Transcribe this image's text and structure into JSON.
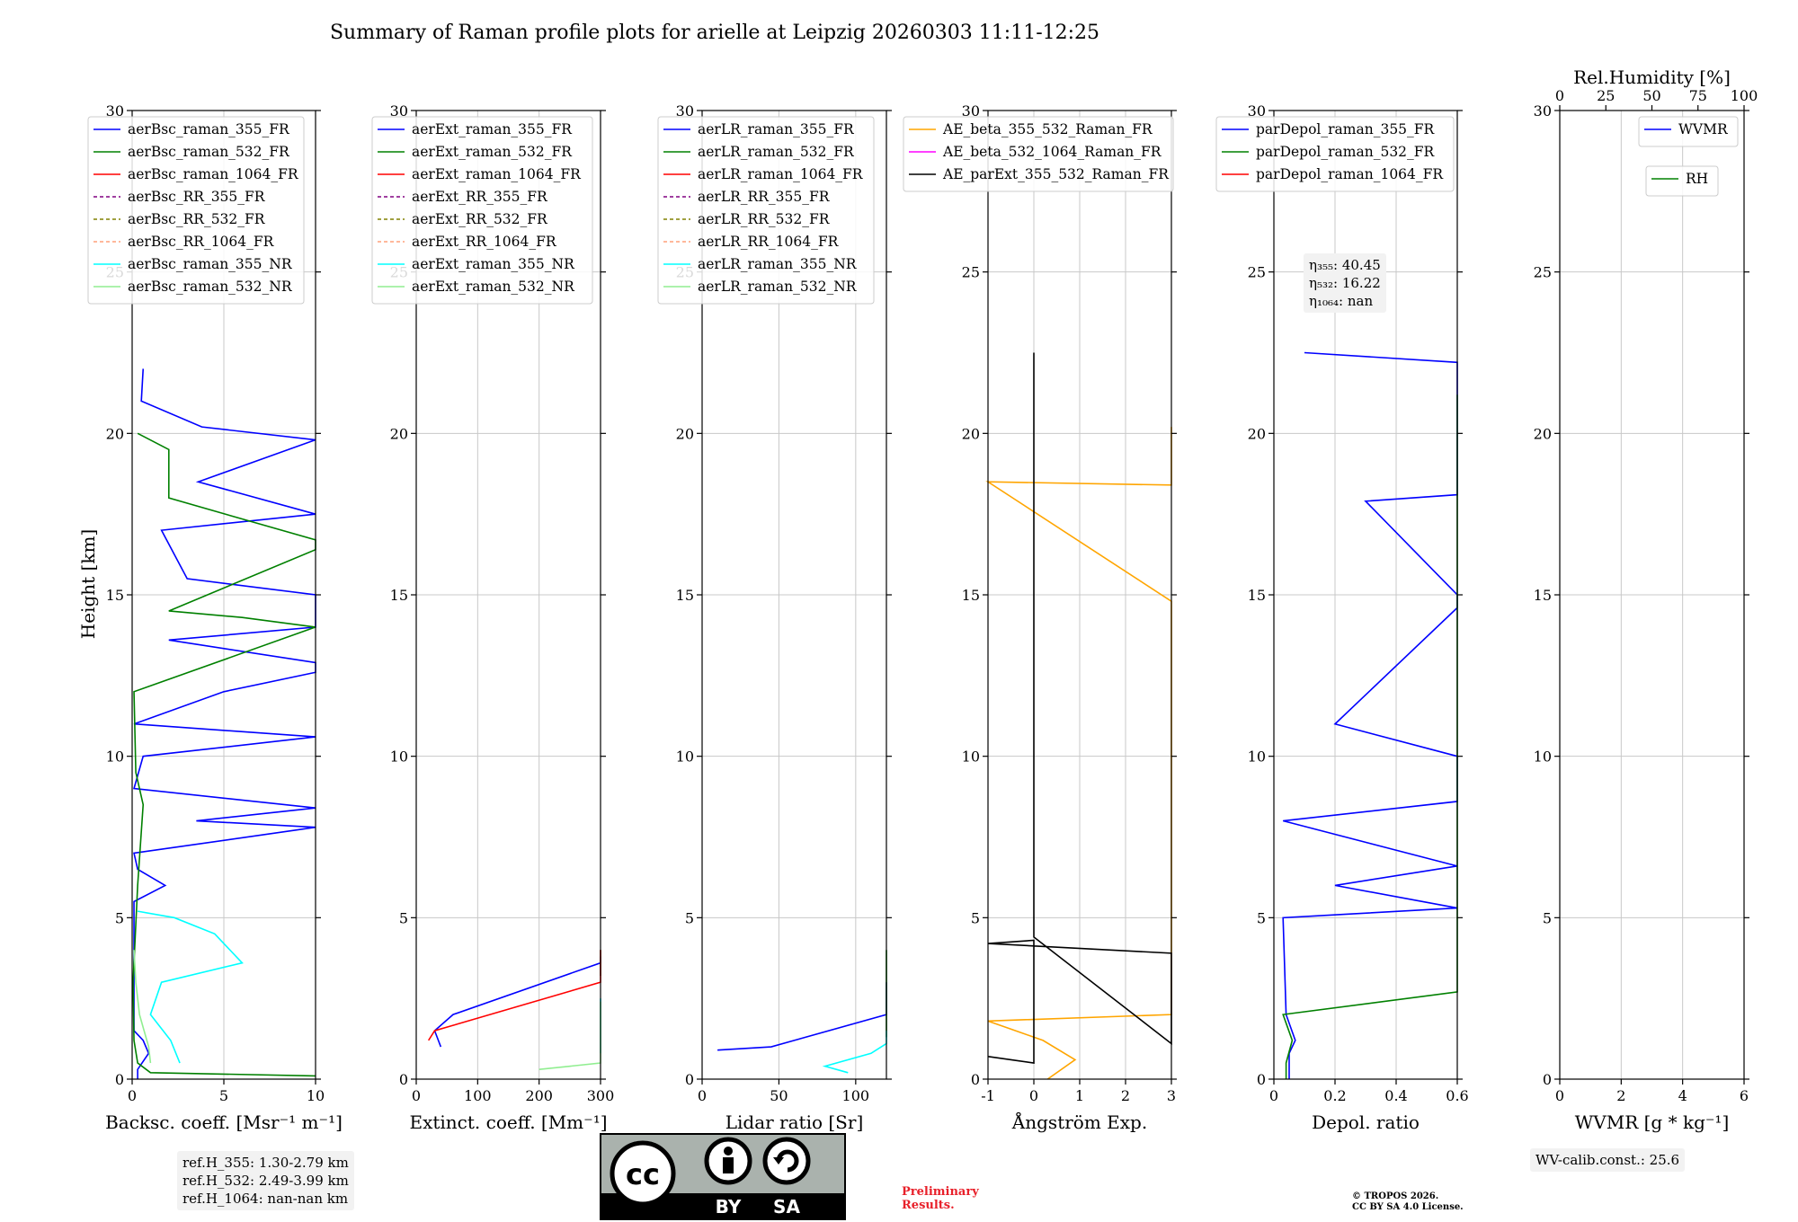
{
  "title": "Summary of Raman profile plots for arielle at Leipzig 20260303 11:11-12:25",
  "shared_y": {
    "label": "Height [km]",
    "ylim": [
      0,
      30
    ],
    "ticks": [
      0,
      5,
      10,
      15,
      20,
      25,
      30
    ]
  },
  "chart_data": [
    {
      "id": "backscatter",
      "type": "line",
      "xlabel": "Backsc. coeff. [Msr⁻¹ m⁻¹]",
      "xlim": [
        0,
        10
      ],
      "xticks": [
        0,
        5,
        10
      ],
      "legend": [
        "aerBsc_raman_355_FR",
        "aerBsc_raman_532_FR",
        "aerBsc_raman_1064_FR",
        "aerBsc_RR_355_FR",
        "aerBsc_RR_532_FR",
        "aerBsc_RR_1064_FR",
        "aerBsc_raman_355_NR",
        "aerBsc_raman_532_NR"
      ],
      "series": [
        {
          "name": "aerBsc_raman_355_FR",
          "color": "#0000ff",
          "points": [
            [
              0.3,
              0
            ],
            [
              0.3,
              0.3
            ],
            [
              0.9,
              0.8
            ],
            [
              0.6,
              1.2
            ],
            [
              0.1,
              1.5
            ],
            [
              0.1,
              5.5
            ],
            [
              1.8,
              6.0
            ],
            [
              0.3,
              6.5
            ],
            [
              0.1,
              7
            ],
            [
              10,
              7.8
            ],
            [
              3.5,
              8.0
            ],
            [
              10,
              8.4
            ],
            [
              0.1,
              9
            ],
            [
              0.6,
              10.0
            ],
            [
              10,
              10.6
            ],
            [
              0.1,
              11
            ],
            [
              5,
              12.0
            ],
            [
              10,
              12.6
            ],
            [
              10,
              12.9
            ],
            [
              2,
              13.6
            ],
            [
              10,
              14.0
            ],
            [
              10,
              14.7
            ],
            [
              10,
              15.0
            ],
            [
              3,
              15.5
            ],
            [
              1.6,
              17
            ],
            [
              10,
              17.5
            ],
            [
              3.6,
              18.5
            ],
            [
              10,
              19.8
            ],
            [
              3.8,
              20.2
            ],
            [
              0.5,
              21
            ],
            [
              0.6,
              22
            ]
          ]
        },
        {
          "name": "aerBsc_raman_532_FR",
          "color": "#008000",
          "points": [
            [
              10,
              0.1
            ],
            [
              1,
              0.2
            ],
            [
              0.3,
              0.5
            ],
            [
              0.1,
              1.2
            ],
            [
              0.05,
              3
            ],
            [
              0.3,
              6
            ],
            [
              0.6,
              8.5
            ],
            [
              0.2,
              9.5
            ],
            [
              0.1,
              12
            ],
            [
              10,
              14.0
            ],
            [
              6,
              14.3
            ],
            [
              2,
              14.5
            ],
            [
              10,
              16.4
            ],
            [
              10,
              16.7
            ],
            [
              2,
              18
            ],
            [
              2,
              19.5
            ],
            [
              0.3,
              20
            ]
          ]
        },
        {
          "name": "aerBsc_raman_355_NR",
          "color": "#00ffff",
          "points": [
            [
              2.6,
              0.5
            ],
            [
              2.1,
              1.2
            ],
            [
              1,
              2
            ],
            [
              1.6,
              3
            ],
            [
              6,
              3.6
            ],
            [
              4.5,
              4.5
            ],
            [
              2.3,
              5
            ],
            [
              0.3,
              5.2
            ]
          ]
        },
        {
          "name": "aerBsc_raman_532_NR",
          "color": "#90ee90",
          "points": [
            [
              1,
              0.5
            ],
            [
              0.9,
              1.0
            ],
            [
              0.4,
              2.0
            ],
            [
              0.2,
              3.0
            ],
            [
              0.1,
              4.0
            ]
          ]
        }
      ]
    },
    {
      "id": "extinction",
      "type": "line",
      "xlabel": "Extinct. coeff. [Mm⁻¹]",
      "xlim": [
        0,
        300
      ],
      "xticks": [
        0,
        100,
        200,
        300
      ],
      "legend": [
        "aerExt_raman_355_FR",
        "aerExt_raman_532_FR",
        "aerExt_raman_1064_FR",
        "aerExt_RR_355_FR",
        "aerExt_RR_532_FR",
        "aerExt_RR_1064_FR",
        "aerExt_raman_355_NR",
        "aerExt_raman_532_NR"
      ],
      "series": [
        {
          "name": "aerExt_raman_355_FR",
          "color": "#0000ff",
          "points": [
            [
              40,
              1.0
            ],
            [
              30,
              1.5
            ],
            [
              60,
              2.0
            ],
            [
              300,
              3.6
            ],
            [
              300,
              3.8
            ]
          ]
        },
        {
          "name": "aerExt_raman_532_FR",
          "color": "#008000",
          "points": [
            [
              300,
              3.2
            ],
            [
              300,
              3.5
            ],
            [
              300,
              3.9
            ],
            [
              300,
              4.0
            ]
          ]
        },
        {
          "name": "aerExt_raman_1064_FR",
          "color": "#ff0000",
          "points": [
            [
              20,
              1.2
            ],
            [
              30,
              1.5
            ],
            [
              300,
              3.0
            ],
            [
              300,
              3.4
            ],
            [
              300,
              4.0
            ]
          ]
        },
        {
          "name": "aerExt_raman_355_NR",
          "color": "#00ffff",
          "points": [
            [
              300,
              0.8
            ],
            [
              300,
              1.5
            ],
            [
              300,
              2.0
            ],
            [
              300,
              2.5
            ]
          ]
        },
        {
          "name": "aerExt_raman_532_NR",
          "color": "#90ee90",
          "points": [
            [
              200,
              0.3
            ],
            [
              300,
              0.5
            ],
            [
              300,
              1.0
            ],
            [
              300,
              1.5
            ],
            [
              300,
              2.0
            ],
            [
              300,
              2.4
            ]
          ]
        }
      ]
    },
    {
      "id": "lidar-ratio",
      "type": "line",
      "xlabel": "Lidar ratio [Sr]",
      "xlim": [
        0,
        120
      ],
      "xticks": [
        0,
        50,
        100
      ],
      "legend": [
        "aerLR_raman_355_FR",
        "aerLR_raman_532_FR",
        "aerLR_raman_1064_FR",
        "aerLR_RR_355_FR",
        "aerLR_RR_532_FR",
        "aerLR_RR_1064_FR",
        "aerLR_raman_355_NR",
        "aerLR_raman_532_NR"
      ],
      "series": [
        {
          "name": "aerLR_raman_355_FR",
          "color": "#0000ff",
          "points": [
            [
              10,
              0.9
            ],
            [
              45,
              1.0
            ],
            [
              60,
              1.2
            ],
            [
              120,
              2.0
            ],
            [
              120,
              3.0
            ]
          ]
        },
        {
          "name": "aerLR_raman_532_FR",
          "color": "#008000",
          "points": [
            [
              120,
              1.3
            ],
            [
              120,
              2.5
            ],
            [
              120,
              3.2
            ],
            [
              120,
              3.6
            ],
            [
              120,
              4.0
            ]
          ]
        },
        {
          "name": "aerLR_raman_355_NR",
          "color": "#00ffff",
          "points": [
            [
              95,
              0.2
            ],
            [
              80,
              0.4
            ],
            [
              110,
              0.8
            ],
            [
              120,
              1.1
            ],
            [
              120,
              1.5
            ]
          ]
        }
      ]
    },
    {
      "id": "angstrom",
      "type": "line",
      "xlabel": "Ångström Exp.",
      "xlim": [
        -1,
        3
      ],
      "xticks": [
        -1,
        0,
        1,
        2,
        3
      ],
      "legend": [
        "AE_beta_355_532_Raman_FR",
        "AE_beta_532_1064_Raman_FR",
        "AE_parExt_355_532_Raman_FR"
      ],
      "series": [
        {
          "name": "AE_beta_355_532_Raman_FR",
          "color": "#ffa500",
          "points": [
            [
              0.3,
              0
            ],
            [
              0.9,
              0.6
            ],
            [
              0.2,
              1.2
            ],
            [
              -1,
              1.8
            ],
            [
              3,
              2.0
            ],
            [
              3,
              4.6
            ],
            [
              3,
              5.2
            ],
            [
              3,
              6.1
            ],
            [
              3,
              7.3
            ],
            [
              3,
              8.6
            ],
            [
              3,
              10.8
            ],
            [
              3,
              11.9
            ],
            [
              3,
              14.5
            ],
            [
              3,
              14.8
            ],
            [
              -1,
              18.5
            ],
            [
              3,
              18.4
            ],
            [
              3,
              19.7
            ],
            [
              3,
              20.2
            ]
          ]
        },
        {
          "name": "AE_parExt_355_532_Raman_FR",
          "color": "#000000",
          "points": [
            [
              -1,
              0.7
            ],
            [
              0,
              0.5
            ],
            [
              0,
              4.3
            ],
            [
              -1,
              4.2
            ],
            [
              3,
              3.9
            ],
            [
              3,
              3.5
            ],
            [
              3,
              2.8
            ],
            [
              3,
              2.5
            ],
            [
              3,
              1.9
            ],
            [
              3,
              1.1
            ],
            [
              0,
              4.4
            ],
            [
              0,
              22.5
            ]
          ]
        }
      ]
    },
    {
      "id": "depolarization",
      "type": "line",
      "xlabel": "Depol. ratio",
      "xlim": [
        0,
        0.6
      ],
      "xticks": [
        0.0,
        0.2,
        0.4,
        0.6
      ],
      "legend": [
        "parDepol_raman_355_FR",
        "parDepol_raman_532_FR",
        "parDepol_raman_1064_FR"
      ],
      "annotation": [
        "η₃₅₅: 40.45",
        "η₅₃₂: 16.22",
        "η₁₀₆₄: nan"
      ],
      "series": [
        {
          "name": "parDepol_raman_355_FR",
          "color": "#0000ff",
          "points": [
            [
              0.05,
              0
            ],
            [
              0.05,
              0.8
            ],
            [
              0.07,
              1.2
            ],
            [
              0.04,
              2
            ],
            [
              0.03,
              5
            ],
            [
              0.6,
              5.3
            ],
            [
              0.2,
              6
            ],
            [
              0.6,
              6.6
            ],
            [
              0.03,
              8
            ],
            [
              0.6,
              8.6
            ],
            [
              0.6,
              10
            ],
            [
              0.2,
              11
            ],
            [
              0.6,
              14.6
            ],
            [
              0.6,
              15.0
            ],
            [
              0.3,
              17.9
            ],
            [
              0.6,
              18.1
            ],
            [
              0.6,
              22.2
            ],
            [
              0.1,
              22.5
            ]
          ]
        },
        {
          "name": "parDepol_raman_532_FR",
          "color": "#008000",
          "points": [
            [
              0.04,
              0
            ],
            [
              0.04,
              0.5
            ],
            [
              0.06,
              1.2
            ],
            [
              0.03,
              2
            ],
            [
              0.6,
              2.7
            ],
            [
              0.6,
              3.8
            ],
            [
              0.6,
              6.2
            ],
            [
              0.6,
              9.3
            ],
            [
              0.6,
              12.0
            ],
            [
              0.6,
              14.0
            ],
            [
              0.6,
              16.7
            ],
            [
              0.6,
              19.6
            ],
            [
              0.6,
              21.2
            ]
          ]
        }
      ]
    },
    {
      "id": "wvmr",
      "type": "line",
      "xlabel": "WVMR [g * kg⁻¹]",
      "xlim": [
        0,
        6
      ],
      "xticks": [
        0,
        2,
        4,
        6
      ],
      "top_xlabel": "Rel.Humidity [%]",
      "top_xlim": [
        0,
        100
      ],
      "top_xticks": [
        0,
        25,
        50,
        75,
        100
      ],
      "legend": [
        "WVMR"
      ],
      "legend_top": [
        "RH"
      ],
      "annotation": [
        "WV-calib.const.: 25.6"
      ],
      "series": []
    }
  ],
  "ref_heights": [
    "ref.H_355: 1.30-2.79 km",
    "ref.H_532: 2.49-3.99 km",
    "ref.H_1064: nan-nan km"
  ],
  "license": {
    "badge_left": "BY",
    "badge_right": "SA",
    "text": [
      "© TROPOS 2026.",
      "CC BY SA 4.0 License."
    ]
  },
  "preliminary": [
    "Preliminary",
    "Results."
  ],
  "colors": {
    "axis": "#000000",
    "grid": "#c8c8c8",
    "legend_edge": "#cccccc"
  }
}
